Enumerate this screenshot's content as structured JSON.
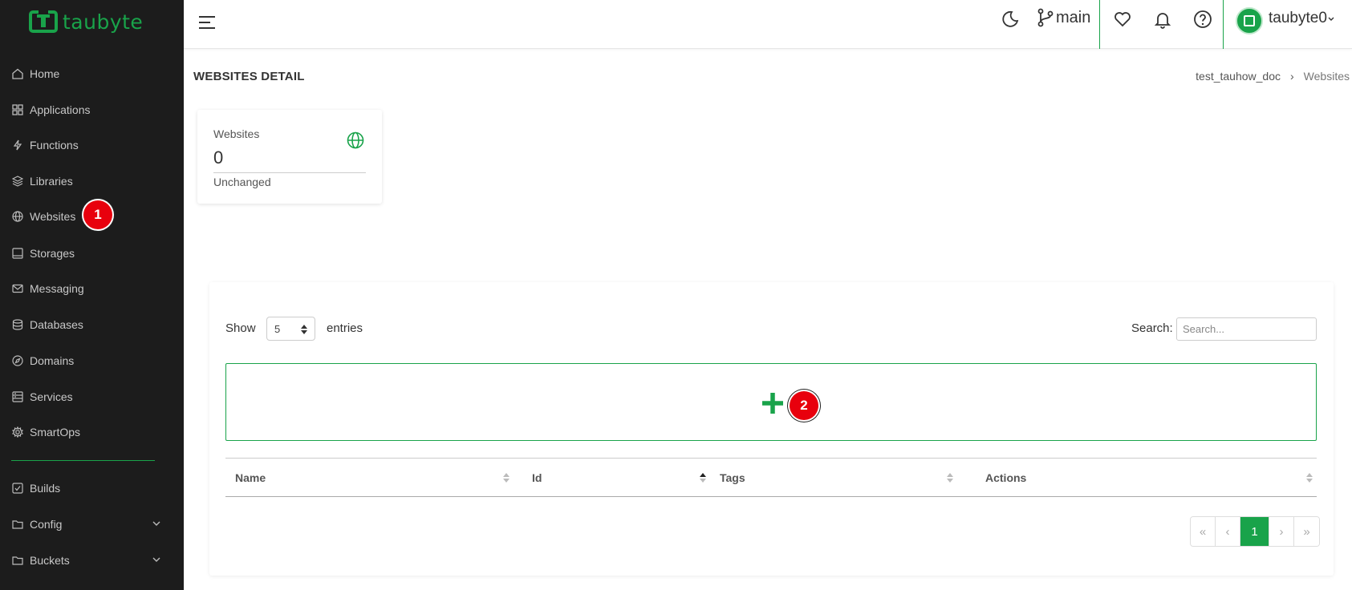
{
  "brand": {
    "name": "taubyte",
    "accent": "#19a34a",
    "sidebar_bg": "#1c1c1c",
    "badge_color": "#e8000d"
  },
  "sidebar": {
    "items": [
      {
        "label": "Home",
        "icon": "home-icon"
      },
      {
        "label": "Applications",
        "icon": "grid-icon"
      },
      {
        "label": "Functions",
        "icon": "bolt-icon"
      },
      {
        "label": "Libraries",
        "icon": "layers-icon"
      },
      {
        "label": "Websites",
        "icon": "globe-icon"
      },
      {
        "label": "Storages",
        "icon": "storage-icon"
      },
      {
        "label": "Messaging",
        "icon": "mail-icon"
      },
      {
        "label": "Databases",
        "icon": "database-icon"
      },
      {
        "label": "Domains",
        "icon": "compass-icon"
      },
      {
        "label": "Services",
        "icon": "server-icon"
      },
      {
        "label": "SmartOps",
        "icon": "cog-icon"
      }
    ],
    "bottom_items": [
      {
        "label": "Builds",
        "icon": "check-square-icon"
      },
      {
        "label": "Config",
        "icon": "folder-icon",
        "expandable": true
      },
      {
        "label": "Buckets",
        "icon": "folder-icon",
        "expandable": true
      }
    ]
  },
  "annotations": {
    "badge1": "1",
    "badge2": "2"
  },
  "topbar": {
    "branch": "main",
    "username": "taubyte0",
    "icons": [
      "menu-icon",
      "moon-icon",
      "git-branch-icon",
      "heart-icon",
      "bell-icon",
      "help-icon",
      "chevron-down-icon"
    ]
  },
  "page": {
    "title": "WEBSITES DETAIL",
    "breadcrumb": [
      "test_tauhow_doc",
      "Websites"
    ],
    "breadcrumb_sep": "›"
  },
  "stat": {
    "label": "Websites",
    "value": "0",
    "status": "Unchanged"
  },
  "table": {
    "show_label": "Show",
    "page_size": "5",
    "entries_label": "entries",
    "search_label": "Search:",
    "search_placeholder": "Search...",
    "columns": [
      "Name",
      "Id",
      "Tags",
      "Actions"
    ],
    "sorted_column": "Id",
    "pagination": [
      "«",
      "‹",
      "1",
      "›",
      "»"
    ],
    "current_page": "1"
  }
}
